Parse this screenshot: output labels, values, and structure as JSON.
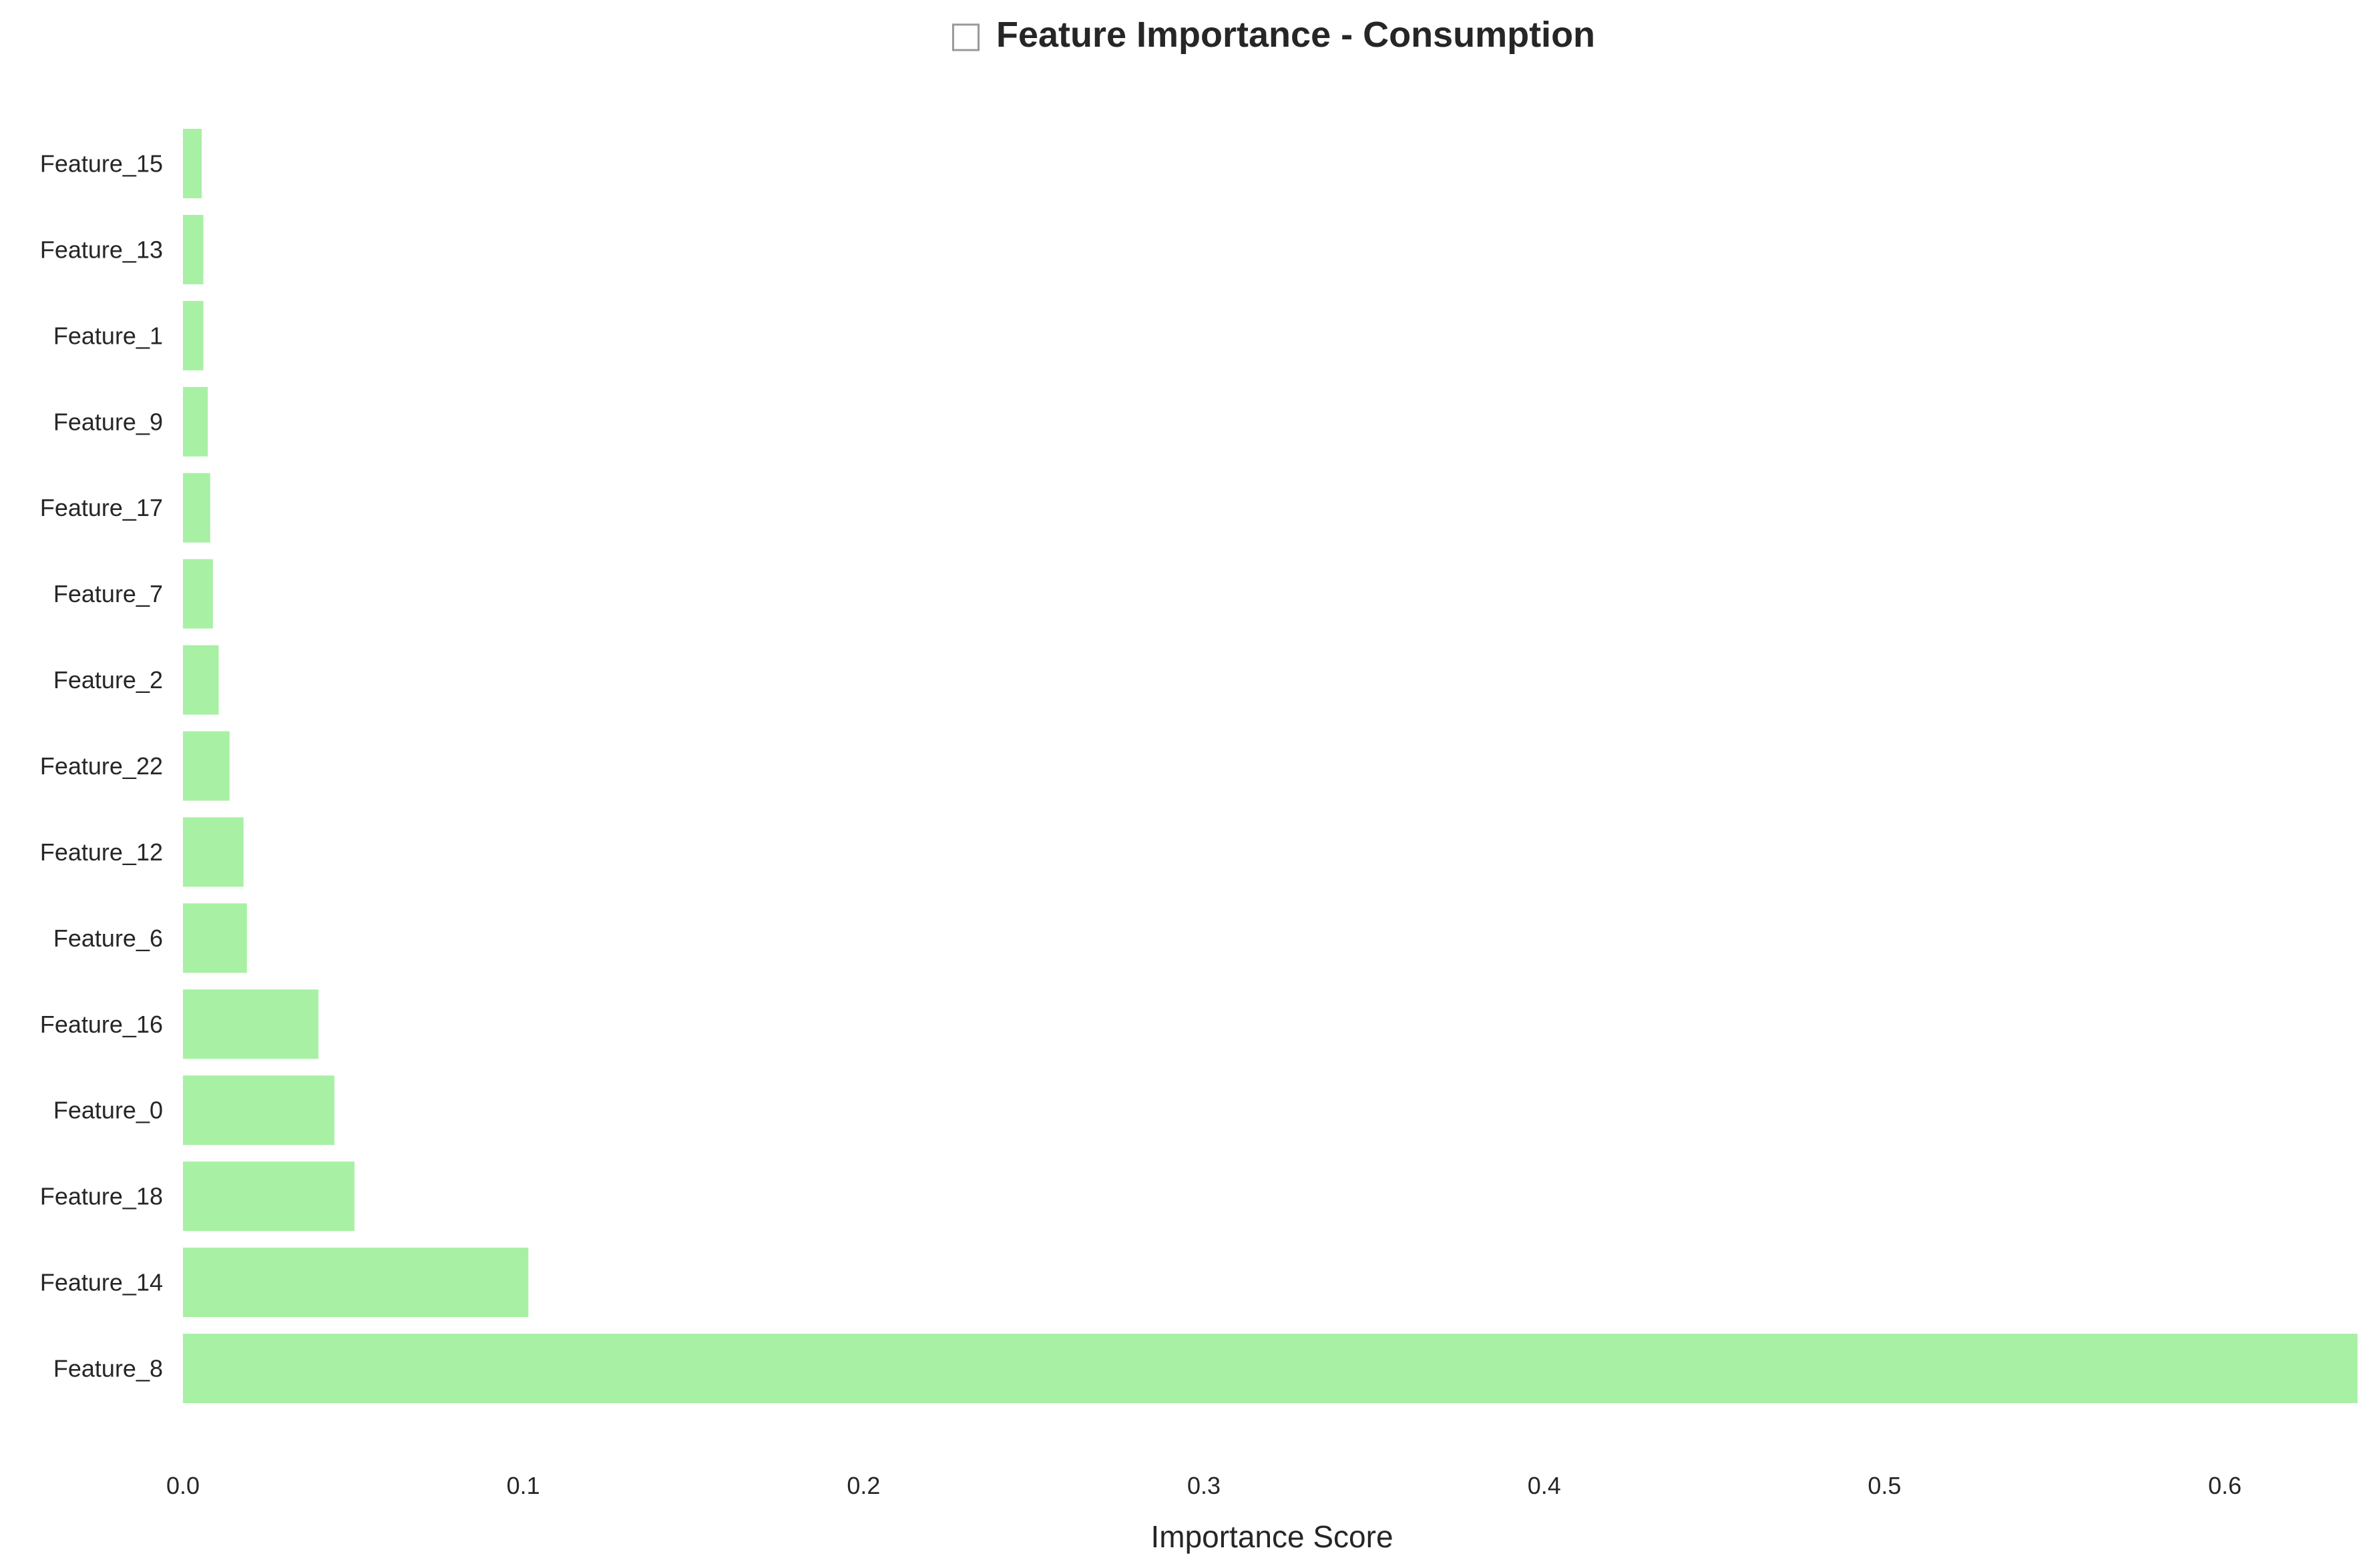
{
  "chart_data": {
    "type": "bar",
    "orientation": "horizontal",
    "title_glyph": "□",
    "title": "Feature Importance - Consumption",
    "xlabel": "Importance Score",
    "ylabel": "",
    "xlim": [
      0,
      0.64
    ],
    "xticks": [
      0.0,
      0.1,
      0.2,
      0.3,
      0.4,
      0.5,
      0.6
    ],
    "xtick_labels": [
      "0.0",
      "0.1",
      "0.2",
      "0.3",
      "0.4",
      "0.5",
      "0.6"
    ],
    "grid": false,
    "bar_color": "#a8f0a4",
    "categories": [
      "Feature_15",
      "Feature_13",
      "Feature_1",
      "Feature_9",
      "Feature_17",
      "Feature_7",
      "Feature_2",
      "Feature_22",
      "Feature_12",
      "Feature_6",
      "Feature_16",
      "Feature_0",
      "Feature_18",
      "Feature_14",
      "Feature_8"
    ],
    "values": [
      0.0055,
      0.006,
      0.006,
      0.0073,
      0.008,
      0.0088,
      0.0105,
      0.0137,
      0.0178,
      0.0188,
      0.0398,
      0.0445,
      0.0504,
      0.1015,
      0.639
    ]
  }
}
